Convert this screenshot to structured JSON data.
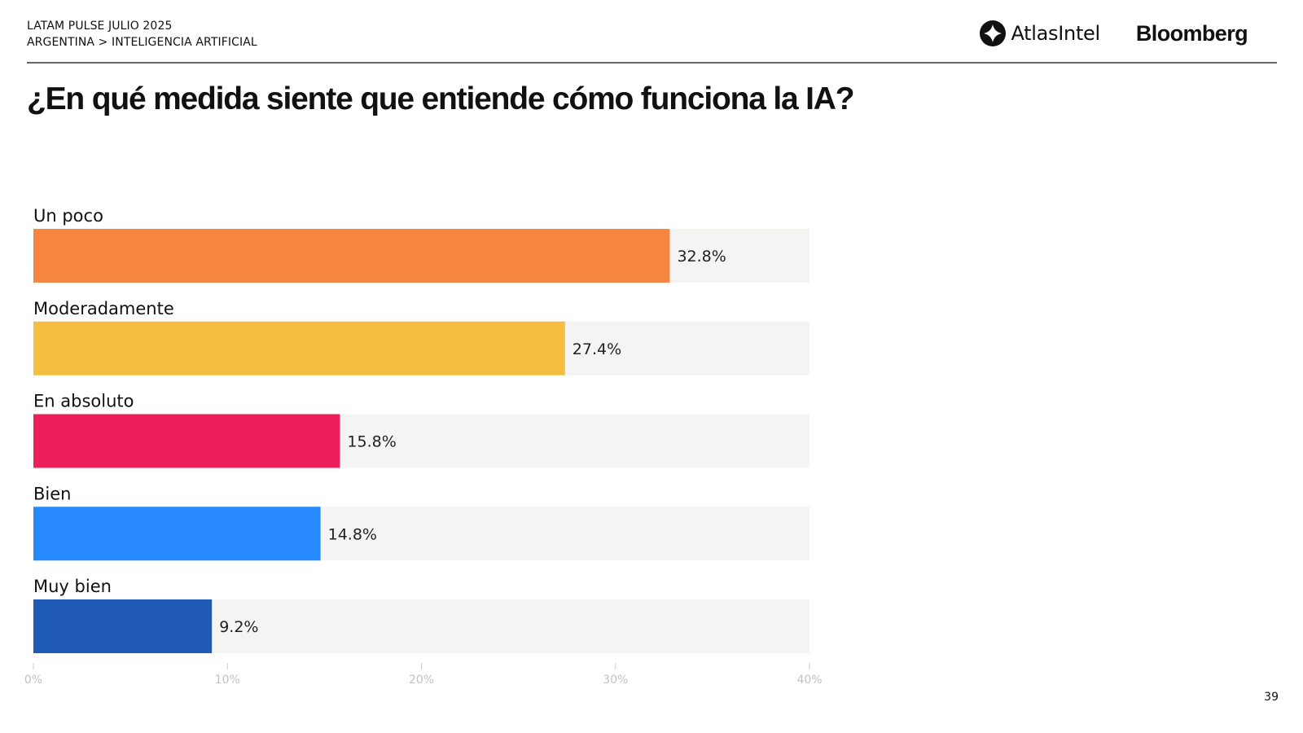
{
  "header": {
    "line1": "LATAM PULSE JULIO 2025",
    "line2": "ARGENTINA > INTELIGENCIA ARTIFICIAL"
  },
  "logos": {
    "atlas": "AtlasIntel",
    "bloomberg": "Bloomberg"
  },
  "page_number": "39",
  "chart_data": {
    "type": "bar",
    "orientation": "horizontal",
    "title": "¿En qué medida siente que entiende cómo funciona la IA?",
    "categories": [
      "Un poco",
      "Moderadamente",
      "En absoluto",
      "Bien",
      "Muy bien"
    ],
    "values": [
      32.8,
      27.4,
      15.8,
      14.8,
      9.2
    ],
    "value_labels": [
      "32.8%",
      "27.4%",
      "15.8%",
      "14.8%",
      "9.2%"
    ],
    "colors": [
      "#F5853F",
      "#F6BE40",
      "#EC1F5B",
      "#2689FF",
      "#1F5AB6"
    ],
    "track_color": "#F4F4F2",
    "xlim": [
      0,
      40
    ],
    "ticks": [
      0,
      10,
      20,
      30,
      40
    ],
    "tick_labels": [
      "0%",
      "10%",
      "20%",
      "30%",
      "40%"
    ],
    "xlabel": "",
    "ylabel": "",
    "grid": false
  }
}
